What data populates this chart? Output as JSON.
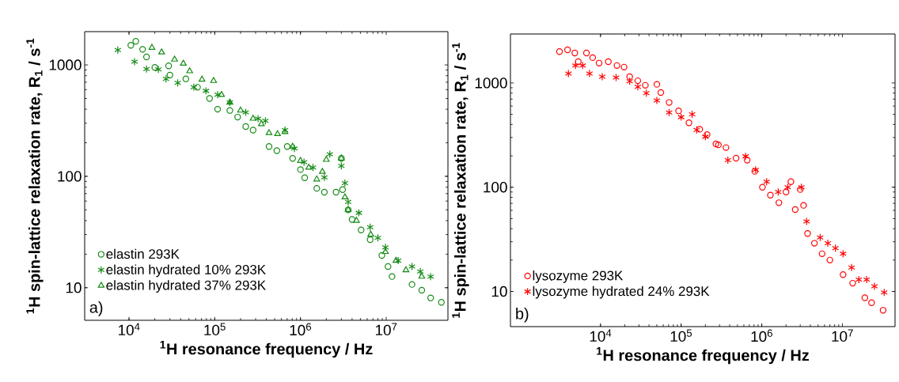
{
  "chart_data": [
    {
      "type": "scatter",
      "xlabel": "$^{1}$H resonance frequency / Hz",
      "ylabel": "$^{1}$H spin-lattice relaxation rate, R$_{1}$ / s$^{-1}$",
      "log": "xy",
      "legend": "bottom left",
      "grid": false,
      "xlim": [
        3040,
        52500000
      ],
      "ylim": [
        5.1,
        1990
      ],
      "xticks": [
        {
          "value": 10000,
          "label": "10$^{4}$"
        },
        {
          "value": 100000,
          "label": "10$^{5}$"
        },
        {
          "value": 1000000,
          "label": "10$^{6}$"
        },
        {
          "value": 10000000,
          "label": "10$^{7}$"
        }
      ],
      "yticks": [
        10,
        100,
        1000
      ],
      "annotations": [
        "a)"
      ],
      "series": [
        {
          "name": "elastin 293K",
          "color": "#138a13",
          "marker": "circle",
          "x": [
            10500,
            12000,
            14400,
            16000,
            20000,
            29000,
            30000,
            46000,
            63000,
            87000,
            108000,
            150000,
            185000,
            230000,
            280000,
            430000,
            530000,
            700000,
            810000,
            1000000,
            1120000,
            1550000,
            1900000,
            2600000,
            3000000,
            3100000,
            3600000,
            4000000,
            5100000,
            6500000,
            8900000,
            10500000,
            11700000,
            20000000,
            26000000,
            33000000,
            44000000
          ],
          "values": [
            1500,
            1630,
            1380,
            1180,
            950,
            980,
            810,
            750,
            630,
            500,
            400,
            390,
            340,
            280,
            260,
            185,
            170,
            185,
            145,
            115,
            97,
            78,
            72,
            72,
            145,
            76,
            50,
            41,
            33,
            27,
            19.5,
            15.5,
            12.6,
            10.7,
            9.5,
            8.1,
            7.4
          ]
        },
        {
          "name": "elastin hydrated 10% 293K",
          "color": "#138a13",
          "marker": "cross",
          "x": [
            7400,
            11600,
            16000,
            22000,
            27000,
            37000,
            57000,
            79000,
            108000,
            150000,
            230000,
            320000,
            390000,
            660000,
            850000,
            1100000,
            1400000,
            1900000,
            2200000,
            3000000,
            3300000,
            3600000,
            4800000,
            6500000,
            8000000,
            9800000,
            13800000,
            20000000,
            25000000,
            33000000
          ],
          "values": [
            1360,
            1070,
            920,
            910,
            750,
            690,
            630,
            585,
            540,
            460,
            375,
            330,
            315,
            260,
            178,
            134,
            120,
            98,
            158,
            124,
            87,
            59,
            47,
            35,
            28,
            23,
            17.5,
            15.5,
            14,
            12.6
          ]
        },
        {
          "name": "elastin hydrated 37% 293K",
          "color": "#138a13",
          "marker": "triangle",
          "x": [
            18500,
            24000,
            34000,
            43000,
            51000,
            71000,
            97000,
            120000,
            150000,
            200000,
            280000,
            350000,
            430000,
            540000,
            660000,
            810000,
            1000000,
            1250000,
            1550000,
            1800000,
            2000000,
            3000000,
            3300000,
            3600000,
            4500000,
            6600000,
            9800000,
            13000000,
            17000000,
            26000000
          ],
          "values": [
            1430,
            1300,
            1120,
            1030,
            880,
            740,
            720,
            540,
            460,
            390,
            330,
            295,
            245,
            240,
            250,
            185,
            138,
            120,
            94,
            110,
            141,
            145,
            65,
            50,
            40,
            30,
            21,
            17.5,
            14.4,
            12.6
          ]
        }
      ]
    },
    {
      "type": "scatter",
      "xlabel": "$^{1}$H resonance frequency / Hz",
      "ylabel": "$^{1}$H spin-lattice relaxation rate, R$_{1}$ / s$^{-1}$",
      "log": "xy",
      "legend": "bottom left",
      "grid": false,
      "xlim": [
        764,
        45000000
      ],
      "ylim": [
        4.6,
        2950
      ],
      "xticks": [
        {
          "value": 10000,
          "label": "10$^{4}$"
        },
        {
          "value": 100000,
          "label": "10$^{5}$"
        },
        {
          "value": 1000000,
          "label": "10$^{6}$"
        },
        {
          "value": 10000000,
          "label": "10$^{7}$"
        }
      ],
      "yticks": [
        10,
        100,
        1000
      ],
      "annotations": [
        "b)"
      ],
      "series": [
        {
          "name": "lysozyme  293K",
          "color": "#ff0000",
          "marker": "circle",
          "x": [
            3100,
            3900,
            4800,
            5300,
            6700,
            8000,
            9600,
            12500,
            16000,
            19600,
            23000,
            29000,
            36000,
            50000,
            56000,
            71000,
            93000,
            125000,
            170000,
            210000,
            270000,
            290000,
            360000,
            480000,
            660000,
            820000,
            1020000,
            1280000,
            1630000,
            2000000,
            2300000,
            2600000,
            3000000,
            3300000,
            3700000,
            4500000,
            5600000,
            7000000,
            10200000,
            13400000,
            19000000,
            23000000,
            32000000
          ],
          "values": [
            2000,
            2080,
            1940,
            1600,
            1940,
            1750,
            1550,
            1600,
            1470,
            1420,
            1150,
            1050,
            950,
            970,
            810,
            650,
            540,
            415,
            360,
            320,
            260,
            255,
            240,
            190,
            182,
            142,
            100,
            84,
            71,
            90,
            113,
            61,
            95,
            67,
            36,
            29,
            23,
            20,
            14.5,
            12,
            8.7,
            7.8,
            6.6
          ]
        },
        {
          "name": "lysozyme hydrated 24% 293K",
          "color": "#ff0000",
          "marker": "cross",
          "x": [
            4000,
            4900,
            6000,
            7300,
            10500,
            15600,
            23000,
            29000,
            37000,
            50000,
            71000,
            100000,
            137000,
            156000,
            200000,
            380000,
            630000,
            840000,
            1150000,
            1600000,
            2100000,
            3100000,
            3600000,
            5300000,
            6600000,
            8200000,
            10200000,
            13000000,
            16000000,
            20000000,
            25000000,
            33000000
          ],
          "values": [
            1230,
            1470,
            1470,
            1230,
            1150,
            1130,
            1040,
            920,
            800,
            680,
            520,
            470,
            500,
            355,
            305,
            182,
            198,
            147,
            113,
            90,
            100,
            100,
            47,
            33,
            29,
            26,
            23,
            17,
            13,
            13,
            11.2,
            9.8
          ]
        }
      ]
    }
  ]
}
